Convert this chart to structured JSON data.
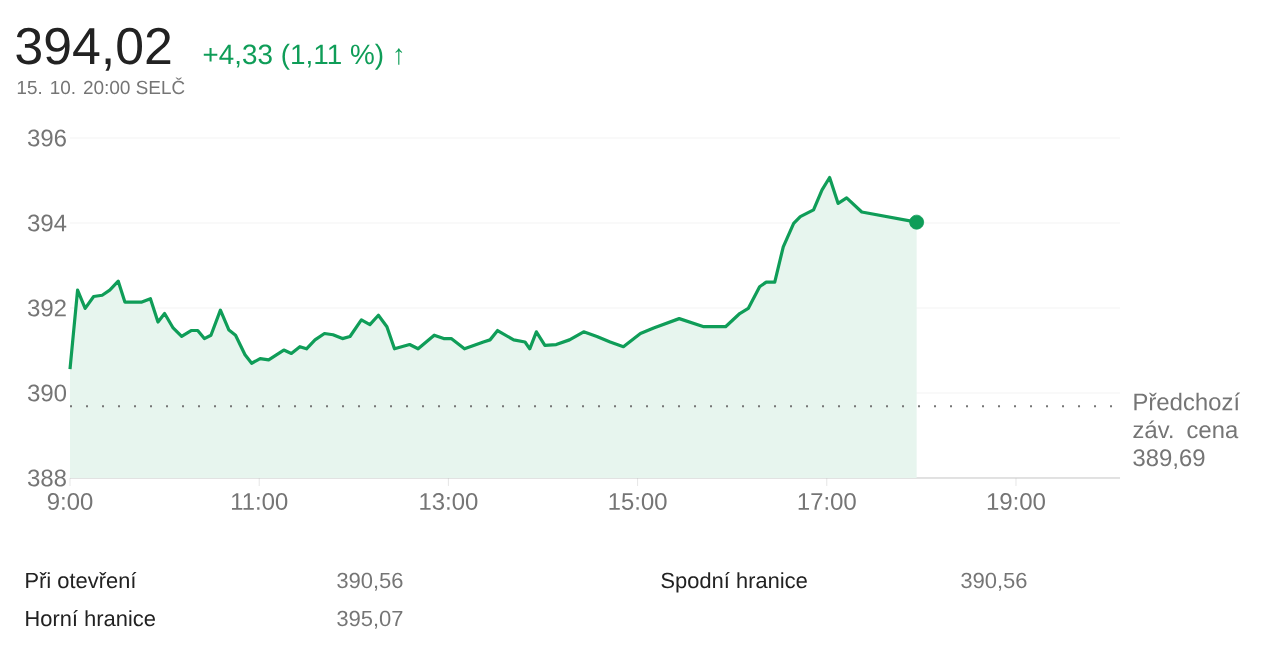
{
  "chart_data": {
    "type": "area",
    "title": "394,02",
    "subtitle": "+4,33 (1,11 %) ↑",
    "annotations": [
      "15. 10. 20:00 SELČ",
      "Při otevření",
      "390,56",
      "Horní hranice",
      "395,07",
      "Spodní hranice",
      "390,56"
    ],
    "series": [
      {
        "color": "#0f9d58",
        "x": [
          9.0,
          9.08,
          9.16,
          9.25,
          9.34,
          9.42,
          9.51,
          9.58,
          9.76,
          9.85,
          9.93,
          10.0,
          10.09,
          10.18,
          10.28,
          10.35,
          10.42,
          10.49,
          10.59,
          10.68,
          10.75,
          10.85,
          10.92,
          11.01,
          11.1,
          11.26,
          11.34,
          11.43,
          11.5,
          11.59,
          11.69,
          11.78,
          11.88,
          11.96,
          12.08,
          12.17,
          12.26,
          12.35,
          12.43,
          12.59,
          12.68,
          12.85,
          12.95,
          13.03,
          13.17,
          13.37,
          13.44,
          13.52,
          13.69,
          13.81,
          13.86,
          13.93,
          14.02,
          14.14,
          14.28,
          14.43,
          14.57,
          14.71,
          14.85,
          15.03,
          15.17,
          15.44,
          15.7,
          15.93,
          16.08,
          16.17,
          16.29,
          16.36,
          16.45,
          16.54,
          16.65,
          16.72,
          16.86,
          16.95,
          17.03,
          17.12,
          17.21,
          17.37,
          17.95
        ],
        "values": [
          390.56,
          392.42,
          391.99,
          392.27,
          392.3,
          392.42,
          392.63,
          392.14,
          392.14,
          392.22,
          391.67,
          391.87,
          391.53,
          391.33,
          391.47,
          391.47,
          391.28,
          391.36,
          391.95,
          391.48,
          391.36,
          390.9,
          390.7,
          390.81,
          390.78,
          391.01,
          390.93,
          391.09,
          391.04,
          391.25,
          391.4,
          391.37,
          391.28,
          391.33,
          391.72,
          391.61,
          391.83,
          391.56,
          391.04,
          391.14,
          391.04,
          391.36,
          391.28,
          391.28,
          391.04,
          391.2,
          391.25,
          391.47,
          391.25,
          391.2,
          391.04,
          391.44,
          391.12,
          391.14,
          391.25,
          391.44,
          391.33,
          391.2,
          391.09,
          391.4,
          391.53,
          391.75,
          391.56,
          391.56,
          391.87,
          391.99,
          392.5,
          392.61,
          392.61,
          393.44,
          393.99,
          394.15,
          394.31,
          394.78,
          395.07,
          394.46,
          394.59,
          394.26,
          394.02
        ]
      },
      {
        "type": "scatter",
        "color": "#0f9d58",
        "marker": "circle",
        "x": [
          17.95
        ],
        "values": [
          394.02
        ]
      }
    ],
    "xlim": [
      9,
      20.1
    ],
    "ylim": [
      388,
      396
    ],
    "xticks": [
      {
        "value": 9,
        "label": "9:00"
      },
      {
        "value": 11,
        "label": "11:00"
      },
      {
        "value": 13,
        "label": "13:00"
      },
      {
        "value": 15,
        "label": "15:00"
      },
      {
        "value": 17,
        "label": "17:00"
      },
      {
        "value": 19,
        "label": "19:00"
      }
    ],
    "yticks": [
      388,
      390,
      392,
      394,
      396
    ],
    "grid": "y",
    "ref_lines": [
      {
        "axis": "y",
        "value": 389.69,
        "label": "Předchozí záv. cena 389,69",
        "color": "#757575",
        "line_style": "dotted"
      }
    ]
  }
}
